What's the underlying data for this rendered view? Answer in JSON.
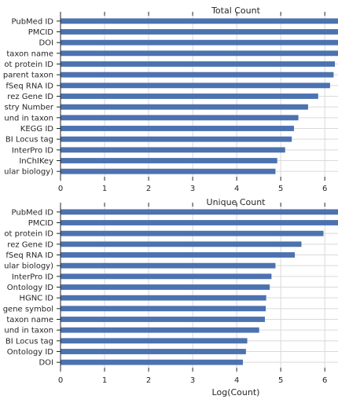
{
  "chart_data": [
    {
      "type": "bar",
      "orientation": "horizontal",
      "title": "Total Count",
      "xlabel": "",
      "xlim": [
        0,
        6.3
      ],
      "xticks": [
        "0",
        "1",
        "2",
        "3",
        "4",
        "5",
        "6"
      ],
      "grid": true,
      "bar_color": "#4c72b0",
      "categories": [
        "PubMed ID",
        "PMCID",
        "DOI",
        "taxon name",
        "ot protein ID",
        "parent taxon",
        "fSeq RNA ID",
        "rez Gene ID",
        "stry Number",
        "und in taxon",
        "KEGG ID",
        "BI Locus tag",
        "InterPro ID",
        "InChIKey",
        "ular biology)"
      ],
      "values": [
        6.5,
        6.4,
        6.35,
        6.3,
        6.23,
        6.2,
        6.12,
        5.85,
        5.62,
        5.4,
        5.3,
        5.25,
        5.1,
        4.92,
        4.88
      ]
    },
    {
      "type": "bar",
      "orientation": "horizontal",
      "title": "Unique Count",
      "xlabel": "Log(Count)",
      "xlim": [
        0,
        6.3
      ],
      "xticks": [
        "0",
        "1",
        "2",
        "3",
        "4",
        "5",
        "6"
      ],
      "grid": true,
      "bar_color": "#4c72b0",
      "categories": [
        "PubMed ID",
        "PMCID",
        "ot protein ID",
        "rez Gene ID",
        "fSeq RNA ID",
        "ular biology)",
        "InterPro ID",
        "Ontology ID",
        "HGNC ID",
        "gene symbol",
        "taxon name",
        "und in taxon",
        "BI Locus tag",
        "Ontology ID",
        "DOI"
      ],
      "values": [
        6.4,
        6.3,
        5.97,
        5.47,
        5.32,
        4.88,
        4.79,
        4.75,
        4.67,
        4.66,
        4.64,
        4.51,
        4.24,
        4.21,
        4.14
      ]
    }
  ]
}
